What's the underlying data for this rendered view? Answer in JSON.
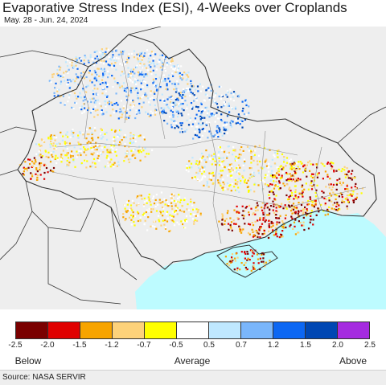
{
  "header": {
    "title": "Evaporative Stress Index (ESI), 4-Weeks over Croplands",
    "subtitle": "May. 28 - Jun. 24, 2024"
  },
  "legend": {
    "colors": [
      "#7a0000",
      "#e00000",
      "#f7a400",
      "#fdd27a",
      "#ffff00",
      "#ffffff",
      "#bfe8ff",
      "#7ab6fb",
      "#0c67f3",
      "#0047b3",
      "#a52be0"
    ],
    "ticks": [
      "-2.5",
      "-2.0",
      "-1.5",
      "-1.2",
      "-0.7",
      "-0.5",
      "0.5",
      "0.7",
      "1.2",
      "1.5",
      "2.0",
      "2.5"
    ],
    "below_label": "Below",
    "average_label": "Average",
    "above_label": "Above"
  },
  "map": {
    "colors": {
      "background": "#eeeeee",
      "sea": "#bdfbff",
      "border": "#333333",
      "internal_border": "#8a8a8a"
    }
  },
  "footer": {
    "source": "Source: NASA SERVIR"
  }
}
